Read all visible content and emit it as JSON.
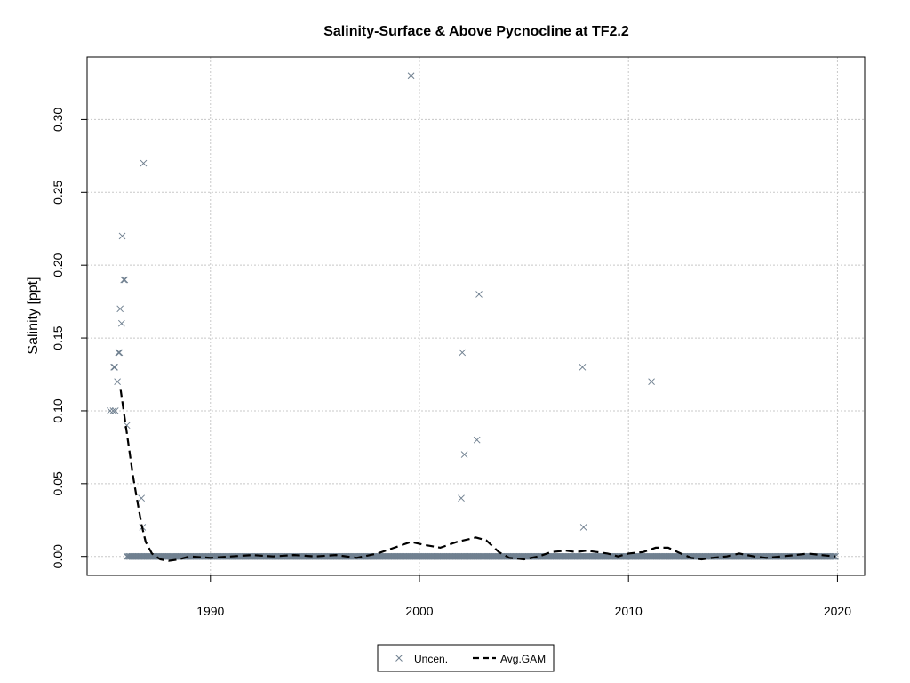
{
  "chart_data": {
    "type": "scatter",
    "title": "Salinity-Surface & Above Pycnocline at TF2.2",
    "xlabel": "",
    "ylabel": "Salinity [ppt]",
    "xlim": [
      1984.1,
      2021.3
    ],
    "ylim": [
      -0.013,
      0.343
    ],
    "x_ticks": [
      1990,
      2000,
      2010,
      2020
    ],
    "y_ticks": [
      0.0,
      0.05,
      0.1,
      0.15,
      0.2,
      0.25,
      0.3
    ],
    "y_tick_labels": [
      "0.00",
      "0.05",
      "0.10",
      "0.15",
      "0.20",
      "0.25",
      "0.30"
    ],
    "grid": true,
    "legend_position": "bottom-center",
    "colors": {
      "points": "#708090",
      "gam": "#000000",
      "grid": "#c8c8c8"
    },
    "series": [
      {
        "name": "Uncen.",
        "kind": "scatter",
        "marker": "x",
        "points": [
          [
            1985.2,
            0.1
          ],
          [
            1985.35,
            0.1
          ],
          [
            1985.45,
            0.1
          ],
          [
            1985.38,
            0.13
          ],
          [
            1985.42,
            0.13
          ],
          [
            1985.55,
            0.12
          ],
          [
            1985.6,
            0.14
          ],
          [
            1985.65,
            0.14
          ],
          [
            1985.68,
            0.17
          ],
          [
            1985.75,
            0.16
          ],
          [
            1985.78,
            0.22
          ],
          [
            1985.85,
            0.19
          ],
          [
            1985.9,
            0.19
          ],
          [
            1986.0,
            0.09
          ],
          [
            1986.7,
            0.04
          ],
          [
            1986.75,
            0.02
          ],
          [
            1986.8,
            0.27
          ],
          [
            1999.6,
            0.33
          ],
          [
            2002.0,
            0.04
          ],
          [
            2002.05,
            0.14
          ],
          [
            2002.15,
            0.07
          ],
          [
            2002.75,
            0.08
          ],
          [
            2002.85,
            0.18
          ],
          [
            2007.8,
            0.13
          ],
          [
            2007.85,
            0.02
          ],
          [
            2011.1,
            0.12
          ]
        ],
        "zero_values_range": [
          1986.0,
          2019.9
        ],
        "zero_value": 0.0
      },
      {
        "name": "Avg.GAM",
        "kind": "line",
        "points": [
          [
            1985.7,
            0.115
          ],
          [
            1985.9,
            0.095
          ],
          [
            1986.1,
            0.075
          ],
          [
            1986.3,
            0.055
          ],
          [
            1986.5,
            0.038
          ],
          [
            1986.7,
            0.022
          ],
          [
            1986.9,
            0.01
          ],
          [
            1987.2,
            0.002
          ],
          [
            1987.6,
            -0.002
          ],
          [
            1988.0,
            -0.003
          ],
          [
            1988.5,
            -0.002
          ],
          [
            1989.0,
            0.0
          ],
          [
            1990.0,
            -0.001
          ],
          [
            1991.0,
            0.0
          ],
          [
            1992.0,
            0.001
          ],
          [
            1993.0,
            0.0
          ],
          [
            1994.0,
            0.001
          ],
          [
            1995.0,
            0.0
          ],
          [
            1996.0,
            0.001
          ],
          [
            1997.0,
            -0.001
          ],
          [
            1998.0,
            0.002
          ],
          [
            1999.0,
            0.007
          ],
          [
            1999.6,
            0.01
          ],
          [
            2000.2,
            0.008
          ],
          [
            2001.0,
            0.006
          ],
          [
            2001.8,
            0.01
          ],
          [
            2002.7,
            0.013
          ],
          [
            2003.2,
            0.011
          ],
          [
            2003.8,
            0.003
          ],
          [
            2004.3,
            -0.001
          ],
          [
            2005.0,
            -0.002
          ],
          [
            2005.7,
            0.0
          ],
          [
            2006.3,
            0.003
          ],
          [
            2007.0,
            0.004
          ],
          [
            2007.5,
            0.003
          ],
          [
            2008.0,
            0.004
          ],
          [
            2008.5,
            0.003
          ],
          [
            2009.0,
            0.002
          ],
          [
            2009.5,
            0.0
          ],
          [
            2010.0,
            0.002
          ],
          [
            2010.7,
            0.003
          ],
          [
            2011.3,
            0.006
          ],
          [
            2011.9,
            0.006
          ],
          [
            2012.5,
            0.002
          ],
          [
            2013.0,
            -0.001
          ],
          [
            2013.5,
            -0.002
          ],
          [
            2014.0,
            -0.001
          ],
          [
            2014.7,
            0.0
          ],
          [
            2015.3,
            0.002
          ],
          [
            2016.0,
            0.0
          ],
          [
            2016.6,
            -0.001
          ],
          [
            2017.3,
            0.0
          ],
          [
            2018.0,
            0.001
          ],
          [
            2018.6,
            0.002
          ],
          [
            2019.2,
            0.001
          ],
          [
            2019.9,
            0.0
          ]
        ]
      }
    ]
  }
}
